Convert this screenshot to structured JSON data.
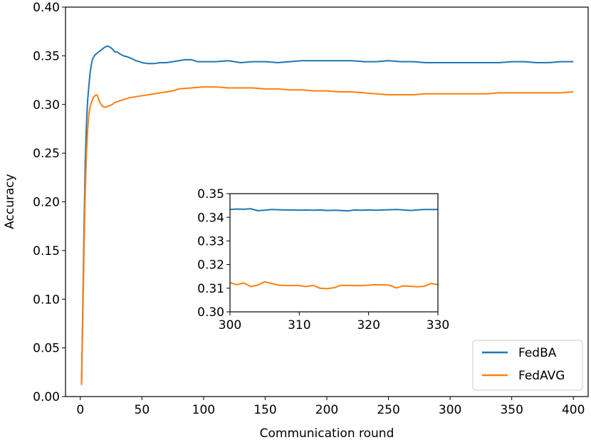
{
  "chart_data": [
    {
      "type": "line",
      "title": "",
      "xlabel": "Communication round",
      "ylabel": "Accuracy",
      "xlim": [
        -12,
        412
      ],
      "ylim": [
        0.0,
        0.4
      ],
      "x_ticks": [
        0,
        50,
        100,
        150,
        200,
        250,
        300,
        350,
        400
      ],
      "y_ticks": [
        0.0,
        0.05,
        0.1,
        0.15,
        0.2,
        0.25,
        0.3,
        0.35,
        0.4
      ],
      "x_tick_labels": [
        "0",
        "50",
        "100",
        "150",
        "200",
        "250",
        "300",
        "350",
        "400"
      ],
      "y_tick_labels": [
        "0.00",
        "0.05",
        "0.10",
        "0.15",
        "0.20",
        "0.25",
        "0.30",
        "0.35",
        "0.40"
      ],
      "grid": false,
      "legend_position": "lower-right",
      "series": [
        {
          "name": "FedBA",
          "color": "#1f77b4",
          "points": [
            [
              1,
              0.012
            ],
            [
              2,
              0.09
            ],
            [
              3,
              0.17
            ],
            [
              4,
              0.24
            ],
            [
              5,
              0.28
            ],
            [
              6,
              0.305
            ],
            [
              7,
              0.32
            ],
            [
              8,
              0.333
            ],
            [
              9,
              0.341
            ],
            [
              10,
              0.347
            ],
            [
              12,
              0.351
            ],
            [
              14,
              0.353
            ],
            [
              16,
              0.355
            ],
            [
              18,
              0.357
            ],
            [
              20,
              0.359
            ],
            [
              22,
              0.36
            ],
            [
              24,
              0.359
            ],
            [
              26,
              0.357
            ],
            [
              28,
              0.354
            ],
            [
              30,
              0.354
            ],
            [
              32,
              0.352
            ],
            [
              35,
              0.35
            ],
            [
              38,
              0.349
            ],
            [
              40,
              0.348
            ],
            [
              42,
              0.347
            ],
            [
              45,
              0.345
            ],
            [
              48,
              0.344
            ],
            [
              50,
              0.343
            ],
            [
              55,
              0.342
            ],
            [
              60,
              0.342
            ],
            [
              65,
              0.343
            ],
            [
              70,
              0.343
            ],
            [
              75,
              0.344
            ],
            [
              80,
              0.345
            ],
            [
              85,
              0.346
            ],
            [
              90,
              0.346
            ],
            [
              95,
              0.344
            ],
            [
              100,
              0.344
            ],
            [
              110,
              0.344
            ],
            [
              120,
              0.345
            ],
            [
              130,
              0.343
            ],
            [
              140,
              0.344
            ],
            [
              150,
              0.344
            ],
            [
              160,
              0.343
            ],
            [
              170,
              0.344
            ],
            [
              180,
              0.345
            ],
            [
              190,
              0.345
            ],
            [
              200,
              0.345
            ],
            [
              210,
              0.345
            ],
            [
              220,
              0.345
            ],
            [
              230,
              0.344
            ],
            [
              240,
              0.344
            ],
            [
              250,
              0.345
            ],
            [
              260,
              0.344
            ],
            [
              270,
              0.344
            ],
            [
              280,
              0.343
            ],
            [
              290,
              0.343
            ],
            [
              300,
              0.343
            ],
            [
              310,
              0.343
            ],
            [
              320,
              0.343
            ],
            [
              330,
              0.343
            ],
            [
              340,
              0.343
            ],
            [
              350,
              0.344
            ],
            [
              360,
              0.344
            ],
            [
              370,
              0.343
            ],
            [
              380,
              0.343
            ],
            [
              390,
              0.344
            ],
            [
              400,
              0.344
            ]
          ]
        },
        {
          "name": "FedAVG",
          "color": "#ff7f0e",
          "points": [
            [
              1,
              0.012
            ],
            [
              2,
              0.08
            ],
            [
              3,
              0.15
            ],
            [
              4,
              0.21
            ],
            [
              5,
              0.25
            ],
            [
              6,
              0.275
            ],
            [
              7,
              0.29
            ],
            [
              8,
              0.298
            ],
            [
              9,
              0.302
            ],
            [
              10,
              0.305
            ],
            [
              11,
              0.308
            ],
            [
              12,
              0.309
            ],
            [
              13,
              0.31
            ],
            [
              14,
              0.309
            ],
            [
              15,
              0.305
            ],
            [
              16,
              0.302
            ],
            [
              18,
              0.298
            ],
            [
              20,
              0.297
            ],
            [
              22,
              0.298
            ],
            [
              24,
              0.299
            ],
            [
              26,
              0.3
            ],
            [
              28,
              0.302
            ],
            [
              30,
              0.303
            ],
            [
              35,
              0.305
            ],
            [
              40,
              0.307
            ],
            [
              45,
              0.308
            ],
            [
              50,
              0.309
            ],
            [
              55,
              0.31
            ],
            [
              60,
              0.311
            ],
            [
              65,
              0.312
            ],
            [
              70,
              0.313
            ],
            [
              75,
              0.314
            ],
            [
              80,
              0.316
            ],
            [
              90,
              0.317
            ],
            [
              100,
              0.318
            ],
            [
              110,
              0.318
            ],
            [
              120,
              0.317
            ],
            [
              130,
              0.317
            ],
            [
              140,
              0.317
            ],
            [
              150,
              0.316
            ],
            [
              160,
              0.316
            ],
            [
              170,
              0.315
            ],
            [
              180,
              0.315
            ],
            [
              190,
              0.314
            ],
            [
              200,
              0.314
            ],
            [
              210,
              0.313
            ],
            [
              220,
              0.313
            ],
            [
              230,
              0.312
            ],
            [
              240,
              0.311
            ],
            [
              250,
              0.31
            ],
            [
              260,
              0.31
            ],
            [
              270,
              0.31
            ],
            [
              280,
              0.311
            ],
            [
              290,
              0.311
            ],
            [
              300,
              0.311
            ],
            [
              310,
              0.311
            ],
            [
              320,
              0.311
            ],
            [
              330,
              0.311
            ],
            [
              340,
              0.312
            ],
            [
              350,
              0.312
            ],
            [
              360,
              0.312
            ],
            [
              370,
              0.312
            ],
            [
              380,
              0.312
            ],
            [
              390,
              0.312
            ],
            [
              400,
              0.313
            ]
          ]
        }
      ]
    },
    {
      "type": "line",
      "title": "",
      "xlabel": "",
      "ylabel": "",
      "xlim": [
        300,
        330
      ],
      "ylim": [
        0.3,
        0.35
      ],
      "x_ticks": [
        300,
        310,
        320,
        330
      ],
      "y_ticks": [
        0.3,
        0.31,
        0.32,
        0.33,
        0.34,
        0.35
      ],
      "x_tick_labels": [
        "300",
        "310",
        "320",
        "330"
      ],
      "y_tick_labels": [
        "0.30",
        "0.31",
        "0.32",
        "0.33",
        "0.34",
        "0.35"
      ],
      "grid": false,
      "series": [
        {
          "color": "#1f77b4",
          "points": [
            [
              300,
              0.3433
            ],
            [
              301,
              0.3435
            ],
            [
              302,
              0.3434
            ],
            [
              303,
              0.3436
            ],
            [
              304,
              0.3428
            ],
            [
              305,
              0.343
            ],
            [
              306,
              0.3433
            ],
            [
              307,
              0.3432
            ],
            [
              308,
              0.3431
            ],
            [
              309,
              0.3431
            ],
            [
              310,
              0.343
            ],
            [
              311,
              0.3431
            ],
            [
              312,
              0.343
            ],
            [
              313,
              0.3431
            ],
            [
              314,
              0.3429
            ],
            [
              315,
              0.343
            ],
            [
              316,
              0.3429
            ],
            [
              317,
              0.3427
            ],
            [
              318,
              0.3431
            ],
            [
              319,
              0.343
            ],
            [
              320,
              0.3431
            ],
            [
              321,
              0.343
            ],
            [
              322,
              0.3431
            ],
            [
              323,
              0.3432
            ],
            [
              324,
              0.3433
            ],
            [
              325,
              0.3431
            ],
            [
              326,
              0.3429
            ],
            [
              327,
              0.3431
            ],
            [
              328,
              0.3433
            ],
            [
              329,
              0.3433
            ],
            [
              330,
              0.3433
            ]
          ]
        },
        {
          "color": "#ff7f0e",
          "points": [
            [
              300,
              0.3123
            ],
            [
              301,
              0.3115
            ],
            [
              302,
              0.3122
            ],
            [
              303,
              0.3107
            ],
            [
              304,
              0.3113
            ],
            [
              305,
              0.3127
            ],
            [
              306,
              0.312
            ],
            [
              307,
              0.3113
            ],
            [
              308,
              0.3111
            ],
            [
              309,
              0.3112
            ],
            [
              310,
              0.3111
            ],
            [
              311,
              0.3107
            ],
            [
              312,
              0.3112
            ],
            [
              313,
              0.31
            ],
            [
              314,
              0.3098
            ],
            [
              315,
              0.3102
            ],
            [
              316,
              0.3112
            ],
            [
              317,
              0.3112
            ],
            [
              318,
              0.3111
            ],
            [
              319,
              0.3111
            ],
            [
              320,
              0.3113
            ],
            [
              321,
              0.3115
            ],
            [
              322,
              0.3114
            ],
            [
              323,
              0.3113
            ],
            [
              324,
              0.3101
            ],
            [
              325,
              0.311
            ],
            [
              326,
              0.3108
            ],
            [
              327,
              0.3106
            ],
            [
              328,
              0.3108
            ],
            [
              329,
              0.312
            ],
            [
              330,
              0.3115
            ]
          ]
        }
      ]
    }
  ]
}
